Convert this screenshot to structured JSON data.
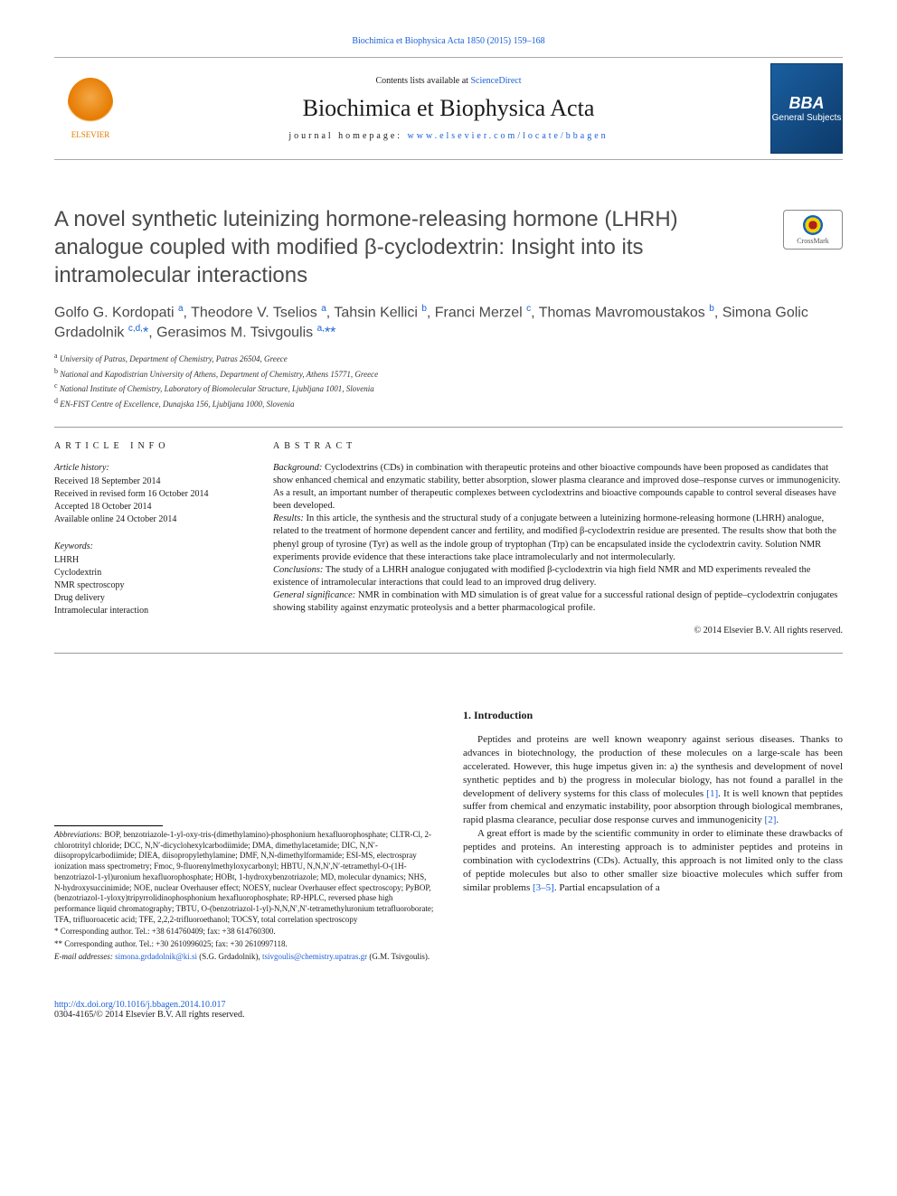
{
  "header": {
    "top_citation": "Biochimica et Biophysica Acta 1850 (2015) 159–168",
    "contents_prefix": "Contents lists available at ",
    "contents_link": "ScienceDirect",
    "journal_name": "Biochimica et Biophysica Acta",
    "homepage_label": "journal homepage: ",
    "homepage_url": "www.elsevier.com/locate/bbagen",
    "elsevier_label": "ELSEVIER",
    "bba_label_big": "BBA",
    "bba_label_small": "General Subjects"
  },
  "title": "A novel synthetic luteinizing hormone-releasing hormone (LHRH) analogue coupled with modified β-cyclodextrin: Insight into its intramolecular interactions",
  "crossmark_label": "CrossMark",
  "authors_html": "Golfo G. Kordopati <sup>a</sup>, Theodore V. Tselios <sup>a</sup>, Tahsin Kellici <sup>b</sup>, Franci Merzel <sup>c</sup>, Thomas Mavromoustakos <sup>b</sup>, Simona Golic Grdadolnik <sup>c,d,</sup><a>*</a>, Gerasimos M. Tsivgoulis <sup>a,</sup><a>**</a>",
  "affiliations": [
    {
      "sup": "a",
      "text": "University of Patras, Department of Chemistry, Patras 26504, Greece"
    },
    {
      "sup": "b",
      "text": "National and Kapodistrian University of Athens, Department of Chemistry, Athens 15771, Greece"
    },
    {
      "sup": "c",
      "text": "National Institute of Chemistry, Laboratory of Biomolecular Structure, Ljubljana 1001, Slovenia"
    },
    {
      "sup": "d",
      "text": "EN-FIST Centre of Excellence, Dunajska 156, Ljubljana 1000, Slovenia"
    }
  ],
  "article_info": {
    "heading": "article info",
    "history_heading": "Article history:",
    "history": [
      "Received 18 September 2014",
      "Received in revised form 16 October 2014",
      "Accepted 18 October 2014",
      "Available online 24 October 2014"
    ],
    "keywords_heading": "Keywords:",
    "keywords": [
      "LHRH",
      "Cyclodextrin",
      "NMR spectroscopy",
      "Drug delivery",
      "Intramolecular interaction"
    ]
  },
  "abstract": {
    "heading": "abstract",
    "sections": [
      {
        "label": "Background:",
        "text": " Cyclodextrins (CDs) in combination with therapeutic proteins and other bioactive compounds have been proposed as candidates that show enhanced chemical and enzymatic stability, better absorption, slower plasma clearance and improved dose–response curves or immunogenicity. As a result, an important number of therapeutic complexes between cyclodextrins and bioactive compounds capable to control several diseases have been developed."
      },
      {
        "label": "Results:",
        "text": " In this article, the synthesis and the structural study of a conjugate between a luteinizing hormone-releasing hormone (LHRH) analogue, related to the treatment of hormone dependent cancer and fertility, and modified β-cyclodextrin residue are presented. The results show that both the phenyl group of tyrosine (Tyr) as well as the indole group of tryptophan (Trp) can be encapsulated inside the cyclodextrin cavity. Solution NMR experiments provide evidence that these interactions take place intramolecularly and not intermolecularly."
      },
      {
        "label": "Conclusions:",
        "text": " The study of a LHRH analogue conjugated with modified β-cyclodextrin via high field NMR and MD experiments revealed the existence of intramolecular interactions that could lead to an improved drug delivery."
      },
      {
        "label": "General significance:",
        "text": " NMR in combination with MD simulation is of great value for a successful rational design of peptide–cyclodextrin conjugates showing stability against enzymatic proteolysis and a better pharmacological profile."
      }
    ],
    "copyright": "© 2014 Elsevier B.V. All rights reserved."
  },
  "footnotes": {
    "abbrev_label": "Abbreviations:",
    "abbrev_text": " BOP, benzotriazole-1-yl-oxy-tris-(dimethylamino)-phosphonium hexafluorophosphate; CLTR-Cl, 2-chlorotrityl chloride; DCC, N,N′-dicyclohexylcarbodiimide; DMA, dimethylacetamide; DIC, N,N′-diisopropylcarbodiimide; DIEA, diisopropylethylamine; DMF, N,N-dimethylformamide; ESI-MS, electrospray ionization mass spectrometry; Fmoc, 9-fluorenylmethyloxycarbonyl; HBTU, N,N,N′,N′-tetramethyl-O-(1H-benzotriazol-1-yl)uronium hexafluorophosphate; HOBt, 1-hydroxybenzotriazole; MD, molecular dynamics; NHS, N-hydroxysuccinimide; NOE, nuclear Overhauser effect; NOESY, nuclear Overhauser effect spectroscopy; PyBOP, (benzotriazol-1-yloxy)tripyrrolidinophosphonium hexafluorophosphate; RP-HPLC, reversed phase high performance liquid chromatography; TBTU, O-(benzotriazol-1-yl)-N,N,N′,N′-tetramethyluronium tetrafluoroborate; TFA, trifluoroacetic acid; TFE, 2,2,2-trifluoroethanol; TOCSY, total correlation spectroscopy",
    "corr1": "* Corresponding author. Tel.: +38 614760409; fax: +38 614760300.",
    "corr2": "** Corresponding author. Tel.: +30 2610996025; fax: +30 2610997118.",
    "email_label": "E-mail addresses:",
    "email1": "simona.grdadolnik@ki.si",
    "email1_name": " (S.G. Grdadolnik), ",
    "email2": "tsivgoulis@chemistry.upatras.gr",
    "email2_name": " (G.M. Tsivgoulis)."
  },
  "intro": {
    "heading": "1. Introduction",
    "p1_pre": "Peptides and proteins are well known weaponry against serious diseases. Thanks to advances in biotechnology, the production of these molecules on a large-scale has been accelerated. However, this huge impetus given in: a) the synthesis and development of novel synthetic peptides and b) the progress in molecular biology, has not found a parallel in the development of delivery systems for this class of molecules ",
    "p1_ref1": "[1]",
    "p1_mid": ". It is well known that peptides suffer from chemical and enzymatic instability, poor absorption through biological membranes, rapid plasma clearance, peculiar dose response curves and immunogenicity ",
    "p1_ref2": "[2]",
    "p1_post": ".",
    "p2_pre": "A great effort is made by the scientific community in order to eliminate these drawbacks of peptides and proteins. An interesting approach is to administer peptides and proteins in combination with cyclodextrins (CDs). Actually, this approach is not limited only to the class of peptide molecules but also to other smaller size bioactive molecules which suffer from similar problems ",
    "p2_ref": "[3–5]",
    "p2_post": ". Partial encapsulation of a"
  },
  "bottom": {
    "doi": "http://dx.doi.org/10.1016/j.bbagen.2014.10.017",
    "issn_line": "0304-4165/© 2014 Elsevier B.V. All rights reserved."
  }
}
